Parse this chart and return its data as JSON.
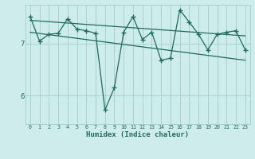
{
  "xlabel": "Humidex (Indice chaleur)",
  "bg_color": "#ceecea",
  "grid_color": "#9ecfcb",
  "line_color": "#1f6b5e",
  "x_min": -0.5,
  "x_max": 23.5,
  "y_min": 5.45,
  "y_max": 7.75,
  "yticks": [
    6,
    7
  ],
  "xticks": [
    0,
    1,
    2,
    3,
    4,
    5,
    6,
    7,
    8,
    9,
    10,
    11,
    12,
    13,
    14,
    15,
    16,
    17,
    18,
    19,
    20,
    21,
    22,
    23
  ],
  "data_x": [
    0,
    1,
    2,
    3,
    4,
    5,
    6,
    7,
    8,
    9,
    10,
    11,
    12,
    13,
    14,
    15,
    16,
    17,
    18,
    19,
    20,
    21,
    22,
    23
  ],
  "data_y": [
    7.52,
    7.05,
    7.18,
    7.2,
    7.48,
    7.28,
    7.25,
    7.2,
    5.72,
    6.15,
    7.22,
    7.52,
    7.08,
    7.22,
    6.68,
    6.72,
    7.65,
    7.42,
    7.18,
    6.88,
    7.18,
    7.22,
    7.25,
    6.88
  ],
  "trend1_x": [
    0,
    23
  ],
  "trend1_y": [
    7.45,
    7.15
  ],
  "trend2_x": [
    0,
    23
  ],
  "trend2_y": [
    7.22,
    6.68
  ]
}
